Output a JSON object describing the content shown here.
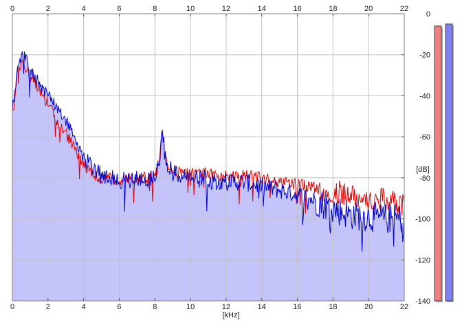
{
  "chart_data": {
    "type": "line",
    "xlabel": "[kHz]",
    "ylabel": "[dB]",
    "xlim": [
      0,
      22
    ],
    "ylim": [
      -140,
      0
    ],
    "x_ticks": [
      0,
      2,
      4,
      6,
      8,
      10,
      12,
      14,
      16,
      18,
      20,
      22
    ],
    "y_ticks": [
      0,
      -20,
      -40,
      -60,
      -80,
      -100,
      -120,
      -140
    ],
    "grid": true,
    "series": [
      {
        "color": "#e00000",
        "x": [
          0,
          0.3,
          0.6,
          1,
          1.5,
          2,
          2.5,
          3,
          3.5,
          4,
          4.5,
          5,
          6,
          7,
          8,
          8.3,
          8.4,
          8.6,
          9,
          10,
          11,
          12,
          13,
          14,
          15,
          16,
          17,
          18,
          19,
          20,
          21,
          22
        ],
        "y": [
          -50,
          -28,
          -25,
          -30,
          -38,
          -44,
          -52,
          -58,
          -66,
          -74,
          -78,
          -80,
          -81,
          -80,
          -80,
          -70,
          -56,
          -72,
          -77,
          -78,
          -78,
          -79,
          -79,
          -80,
          -82,
          -83,
          -85,
          -87,
          -88,
          -90,
          -91,
          -93
        ]
      },
      {
        "color": "#0000c8",
        "x": [
          0,
          0.3,
          0.6,
          1,
          1.5,
          2,
          2.5,
          3,
          3.5,
          4,
          4.5,
          5,
          6,
          7,
          8,
          8.3,
          8.4,
          8.6,
          9,
          10,
          11,
          12,
          13,
          14,
          15,
          16,
          17,
          18,
          19,
          20,
          21,
          22
        ],
        "y": [
          -48,
          -27,
          -20,
          -27,
          -34,
          -40,
          -46,
          -52,
          -60,
          -70,
          -76,
          -79,
          -81,
          -81,
          -80,
          -70,
          -55,
          -71,
          -78,
          -80,
          -81,
          -82,
          -82,
          -84,
          -86,
          -88,
          -91,
          -95,
          -98,
          -99,
          -100,
          -100
        ]
      }
    ],
    "fill_color": "#c4c4fa",
    "level_meters": [
      {
        "color": "#f08080",
        "value_db": -6
      },
      {
        "color": "#8080f0",
        "value_db": -5
      }
    ]
  }
}
